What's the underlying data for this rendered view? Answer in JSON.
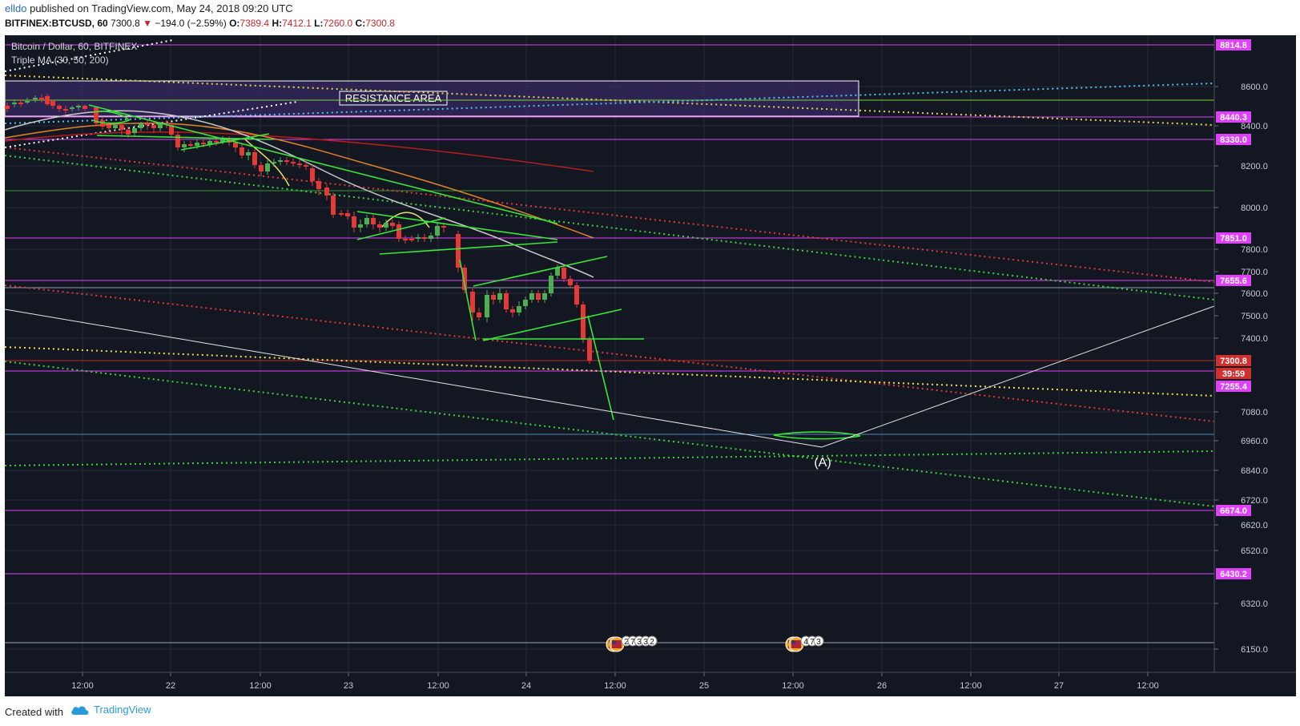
{
  "header": {
    "user": "elldo",
    "published": "published on TradingView.com, May 24, 2018 09:20 UTC",
    "symbol": "BITFINEX:BTCUSD, 60",
    "last": "7300.8",
    "change": "−194.0 (−2.59%)",
    "o_label": "O:",
    "o_value": "7389.4",
    "h_label": "H:",
    "h_value": "7412.1",
    "l_label": "L:",
    "l_value": "7260.0",
    "c_label": "C:",
    "c_value": "7300.8"
  },
  "legend": {
    "title": "Bitcoin / Dollar, 60, BITFINEX",
    "indicator": "Triple MA (30, 50, 200)"
  },
  "annotations": {
    "resistance": "RESISTANCE AREA",
    "wave": "(A)"
  },
  "price_axis": {
    "ticks": [
      "8600.0",
      "8400.0",
      "8200.0",
      "8000.0",
      "7800.0",
      "7700.0",
      "7600.0",
      "7500.0",
      "7400.0",
      "7080.0",
      "6960.0",
      "6840.0",
      "6720.0",
      "6620.0",
      "6520.0",
      "6320.0",
      "6150.0"
    ],
    "badges": [
      {
        "text": "8814.8",
        "color": "#e040fb"
      },
      {
        "text": "8440.3",
        "color": "#e040fb"
      },
      {
        "text": "8330.0",
        "color": "#e040fb"
      },
      {
        "text": "7851.0",
        "color": "#e040fb"
      },
      {
        "text": "7655.6",
        "color": "#e040fb"
      },
      {
        "text": "7300.8",
        "color": "#d32f2f"
      },
      {
        "text": "39:59",
        "color": "#d32f2f"
      },
      {
        "text": "7255.4",
        "color": "#e040fb"
      },
      {
        "text": "6674.0",
        "color": "#e040fb"
      },
      {
        "text": "6430.2",
        "color": "#e040fb"
      }
    ]
  },
  "time_axis": {
    "ticks": [
      "12:00",
      "22",
      "12:00",
      "23",
      "12:00",
      "24",
      "12:00",
      "25",
      "12:00",
      "26",
      "12:00",
      "27",
      "12:00"
    ]
  },
  "events": {
    "group1": [
      "2",
      "7",
      "3",
      "3",
      "2"
    ],
    "group2": [
      "4",
      "7",
      "3"
    ]
  },
  "footer": {
    "created": "Created with",
    "brand": "TradingView"
  },
  "colors": {
    "background": "#131722",
    "grid": "#2a2e39",
    "magenta": "#e040fb",
    "up": "#4caf50",
    "down": "#e53935",
    "trend_green": "#39e639"
  }
}
